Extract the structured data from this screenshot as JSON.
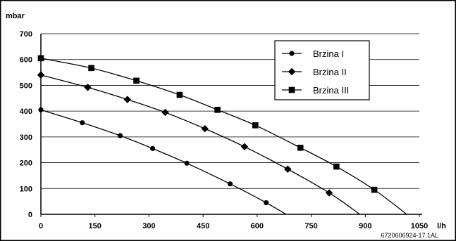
{
  "chart_data": {
    "type": "line",
    "xlabel": "l/h",
    "ylabel": "mbar",
    "xlim": [
      0,
      1050
    ],
    "ylim": [
      0,
      700
    ],
    "x_ticks": [
      "0",
      "150",
      "300",
      "450",
      "600",
      "750",
      "900",
      "1050"
    ],
    "y_ticks": [
      "0",
      "100",
      "200",
      "300",
      "400",
      "500",
      "600",
      "700"
    ],
    "grid": "horizontal",
    "legend_position": "top-right",
    "series": [
      {
        "name": "Brzina I",
        "marker": "circle",
        "points": [
          [
            0,
            405
          ],
          [
            115,
            355
          ],
          [
            220,
            305
          ],
          [
            310,
            255
          ],
          [
            405,
            198
          ],
          [
            525,
            118
          ],
          [
            625,
            45
          ]
        ],
        "curve": [
          [
            0,
            405
          ],
          [
            115,
            355
          ],
          [
            220,
            305
          ],
          [
            310,
            255
          ],
          [
            405,
            198
          ],
          [
            525,
            118
          ],
          [
            625,
            45
          ],
          [
            680,
            0
          ]
        ]
      },
      {
        "name": "Brzina II",
        "marker": "diamond",
        "points": [
          [
            0,
            540
          ],
          [
            130,
            492
          ],
          [
            240,
            445
          ],
          [
            345,
            395
          ],
          [
            455,
            332
          ],
          [
            565,
            262
          ],
          [
            685,
            175
          ],
          [
            800,
            83
          ]
        ],
        "curve": [
          [
            0,
            540
          ],
          [
            130,
            492
          ],
          [
            240,
            445
          ],
          [
            345,
            395
          ],
          [
            455,
            332
          ],
          [
            565,
            262
          ],
          [
            685,
            175
          ],
          [
            800,
            83
          ],
          [
            885,
            0
          ]
        ]
      },
      {
        "name": "Brzina III",
        "marker": "square",
        "points": [
          [
            0,
            605
          ],
          [
            140,
            567
          ],
          [
            265,
            518
          ],
          [
            385,
            463
          ],
          [
            490,
            405
          ],
          [
            595,
            345
          ],
          [
            720,
            258
          ],
          [
            820,
            185
          ],
          [
            925,
            95
          ]
        ],
        "curve": [
          [
            0,
            605
          ],
          [
            140,
            567
          ],
          [
            265,
            518
          ],
          [
            385,
            463
          ],
          [
            490,
            405
          ],
          [
            595,
            345
          ],
          [
            720,
            258
          ],
          [
            820,
            185
          ],
          [
            925,
            95
          ],
          [
            1015,
            0
          ]
        ]
      }
    ],
    "code_label": "6720606924-17.1AL"
  }
}
